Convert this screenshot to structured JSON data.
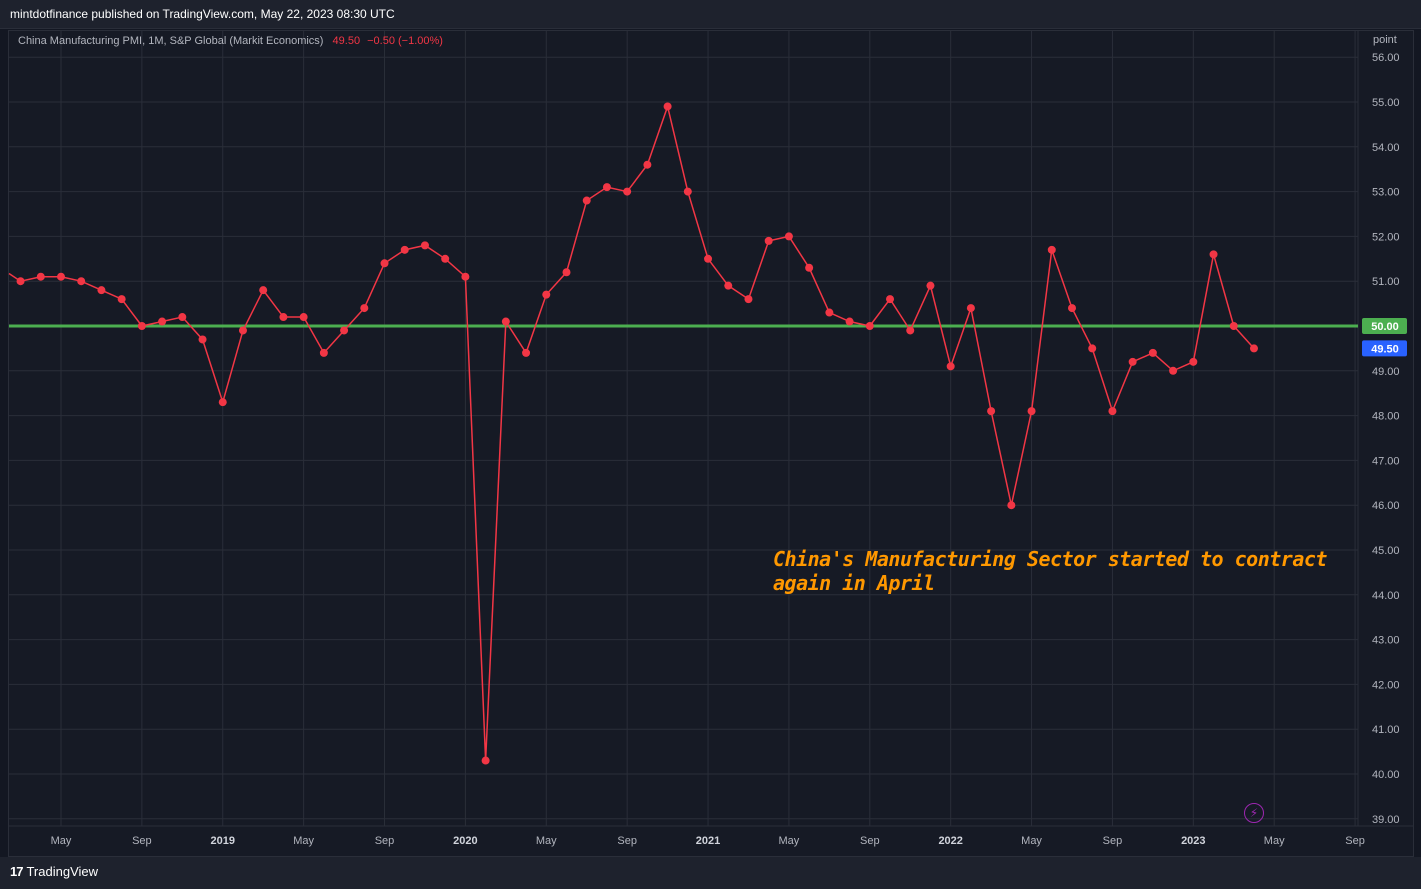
{
  "header": {
    "published": "mintdotfinance published on TradingView.com, May 22, 2023 08:30 UTC"
  },
  "legend": {
    "title": "China Manufacturing PMI, 1M, S&P Global (Markit Economics)",
    "last": "49.50",
    "change": "−0.50 (−1.00%)"
  },
  "axis": {
    "unit": "point"
  },
  "annotation": {
    "line1": "China's Manufacturing Sector started to contract",
    "line2": "again in April"
  },
  "footer": {
    "brand": "TradingView",
    "mark": "17"
  },
  "colors": {
    "series": "#f23645",
    "reference": "#4caf50",
    "annotation": "#ff9800",
    "last_badge": "#2962ff",
    "ref_badge": "#4caf50",
    "background": "#161a25",
    "grid": "#2a2e39"
  },
  "icons": {
    "alert": "lightning-icon"
  },
  "chart_data": {
    "type": "line",
    "title": "China Manufacturing PMI, 1M, S&P Global (Markit Economics)",
    "ylabel": "point",
    "ylim": [
      39,
      56
    ],
    "y_ticks": [
      "39.00",
      "40.00",
      "41.00",
      "42.00",
      "43.00",
      "44.00",
      "45.00",
      "46.00",
      "47.00",
      "48.00",
      "49.00",
      "50.00",
      "51.00",
      "52.00",
      "53.00",
      "54.00",
      "55.00",
      "56.00"
    ],
    "x_ticks": [
      {
        "label": "May",
        "date": "2018-05",
        "bold": false
      },
      {
        "label": "Sep",
        "date": "2018-09",
        "bold": false
      },
      {
        "label": "2019",
        "date": "2019-01",
        "bold": true
      },
      {
        "label": "May",
        "date": "2019-05",
        "bold": false
      },
      {
        "label": "Sep",
        "date": "2019-09",
        "bold": false
      },
      {
        "label": "2020",
        "date": "2020-01",
        "bold": true
      },
      {
        "label": "May",
        "date": "2020-05",
        "bold": false
      },
      {
        "label": "Sep",
        "date": "2020-09",
        "bold": false
      },
      {
        "label": "2021",
        "date": "2021-01",
        "bold": true
      },
      {
        "label": "May",
        "date": "2021-05",
        "bold": false
      },
      {
        "label": "Sep",
        "date": "2021-09",
        "bold": false
      },
      {
        "label": "2022",
        "date": "2022-01",
        "bold": true
      },
      {
        "label": "May",
        "date": "2022-05",
        "bold": false
      },
      {
        "label": "Sep",
        "date": "2022-09",
        "bold": false
      },
      {
        "label": "2023",
        "date": "2023-01",
        "bold": true
      },
      {
        "label": "May",
        "date": "2023-05",
        "bold": false
      },
      {
        "label": "Sep",
        "date": "2023-09",
        "bold": false
      }
    ],
    "series": [
      {
        "values": [
          [
            "2018-03",
            51.0
          ],
          [
            "2018-04",
            51.1
          ],
          [
            "2018-05",
            51.1
          ],
          [
            "2018-06",
            51.0
          ],
          [
            "2018-07",
            50.8
          ],
          [
            "2018-08",
            50.6
          ],
          [
            "2018-09",
            50.0
          ],
          [
            "2018-10",
            50.1
          ],
          [
            "2018-11",
            50.2
          ],
          [
            "2018-12",
            49.7
          ],
          [
            "2019-01",
            48.3
          ],
          [
            "2019-02",
            49.9
          ],
          [
            "2019-03",
            50.8
          ],
          [
            "2019-04",
            50.2
          ],
          [
            "2019-05",
            50.2
          ],
          [
            "2019-06",
            49.4
          ],
          [
            "2019-07",
            49.9
          ],
          [
            "2019-08",
            50.4
          ],
          [
            "2019-09",
            51.4
          ],
          [
            "2019-10",
            51.7
          ],
          [
            "2019-11",
            51.8
          ],
          [
            "2019-12",
            51.5
          ],
          [
            "2020-01",
            51.1
          ],
          [
            "2020-02",
            40.3
          ],
          [
            "2020-03",
            50.1
          ],
          [
            "2020-04",
            49.4
          ],
          [
            "2020-05",
            50.7
          ],
          [
            "2020-06",
            51.2
          ],
          [
            "2020-07",
            52.8
          ],
          [
            "2020-08",
            53.1
          ],
          [
            "2020-09",
            53.0
          ],
          [
            "2020-10",
            53.6
          ],
          [
            "2020-11",
            54.9
          ],
          [
            "2020-12",
            53.0
          ],
          [
            "2021-01",
            51.5
          ],
          [
            "2021-02",
            50.9
          ],
          [
            "2021-03",
            50.6
          ],
          [
            "2021-04",
            51.9
          ],
          [
            "2021-05",
            52.0
          ],
          [
            "2021-06",
            51.3
          ],
          [
            "2021-07",
            50.3
          ],
          [
            "2021-08",
            50.1
          ],
          [
            "2021-09",
            50.0
          ],
          [
            "2021-10",
            50.6
          ],
          [
            "2021-11",
            49.9
          ],
          [
            "2021-12",
            50.9
          ],
          [
            "2022-01",
            49.1
          ],
          [
            "2022-02",
            50.4
          ],
          [
            "2022-03",
            48.1
          ],
          [
            "2022-04",
            46.0
          ],
          [
            "2022-05",
            48.1
          ],
          [
            "2022-06",
            51.7
          ],
          [
            "2022-07",
            50.4
          ],
          [
            "2022-08",
            49.5
          ],
          [
            "2022-09",
            48.1
          ],
          [
            "2022-10",
            49.2
          ],
          [
            "2022-11",
            49.4
          ],
          [
            "2022-12",
            49.0
          ],
          [
            "2023-01",
            49.2
          ],
          [
            "2023-02",
            51.6
          ],
          [
            "2023-03",
            50.0
          ],
          [
            "2023-04",
            49.5
          ]
        ],
        "start_value": 51.3,
        "start_date": "2018-02"
      }
    ],
    "reference_line": {
      "value": 50.0,
      "label": "50.00"
    },
    "last_value_label": "49.50",
    "grid": true,
    "legend": "top-left"
  }
}
